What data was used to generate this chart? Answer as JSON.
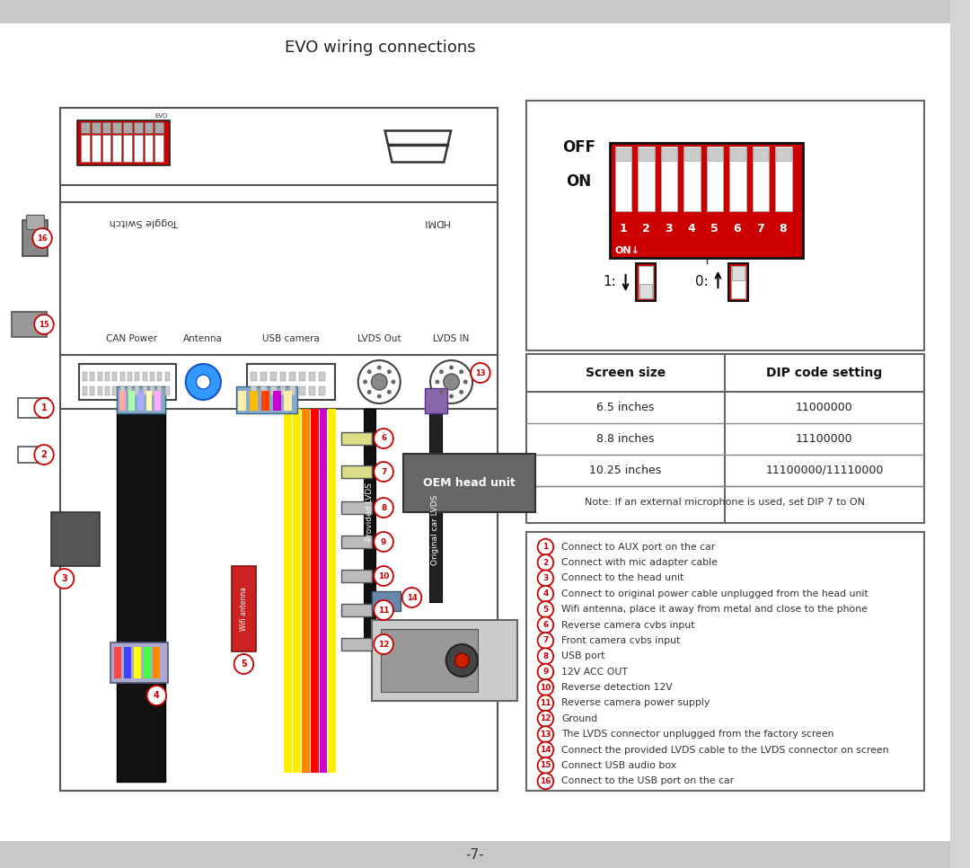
{
  "title": "EVO wiring connections",
  "page_number": "-7-",
  "bg_color": "#d4d4d4",
  "white": "#ffffff",
  "black": "#000000",
  "red": "#cc0000",
  "table_headers": [
    "Screen size",
    "DIP code setting"
  ],
  "table_rows": [
    [
      "6.5 inches",
      "11000000"
    ],
    [
      "8.8 inches",
      "11100000"
    ],
    [
      "10.25 inches",
      "11100000/11110000"
    ]
  ],
  "table_note": "Note: If an external microphone is used, set DIP 7 to ON",
  "legend_items": [
    [
      "1",
      "Connect to AUX port on the car"
    ],
    [
      "2",
      "Connect with mic adapter cable"
    ],
    [
      "3",
      "Connect to the head unit"
    ],
    [
      "4",
      "Connect to original power cable unplugged from the head unit"
    ],
    [
      "5",
      "Wifi antenna, place it away from metal and close to the phone"
    ],
    [
      "6",
      "Reverse camera cvbs input"
    ],
    [
      "7",
      "Front camera cvbs input"
    ],
    [
      "8",
      "USB port"
    ],
    [
      "9",
      "12V ACC OUT"
    ],
    [
      "10",
      "Reverse detection 12V"
    ],
    [
      "11",
      "Reverse camera power supply"
    ],
    [
      "12",
      "Ground"
    ],
    [
      "13",
      "The LVDS connector unplugged from the factory screen"
    ],
    [
      "14",
      "Connect the provided LVDS cable to the LVDS connector on screen"
    ],
    [
      "15",
      "Connect USB audio box"
    ],
    [
      "16",
      "Connect to the USB port on the car"
    ]
  ],
  "connector_labels": [
    "CAN Power",
    "Antenna",
    "USB camera",
    "LVDS Out",
    "LVDS IN"
  ],
  "toggle_switch_label": "Toggle Switch",
  "hdmi_label": "HDMI",
  "oem_label": "OEM head unit",
  "provided_lvds": "Provided LVDS",
  "original_lvds": "Original car LVDS",
  "wifi_label": "Wifi antenna"
}
